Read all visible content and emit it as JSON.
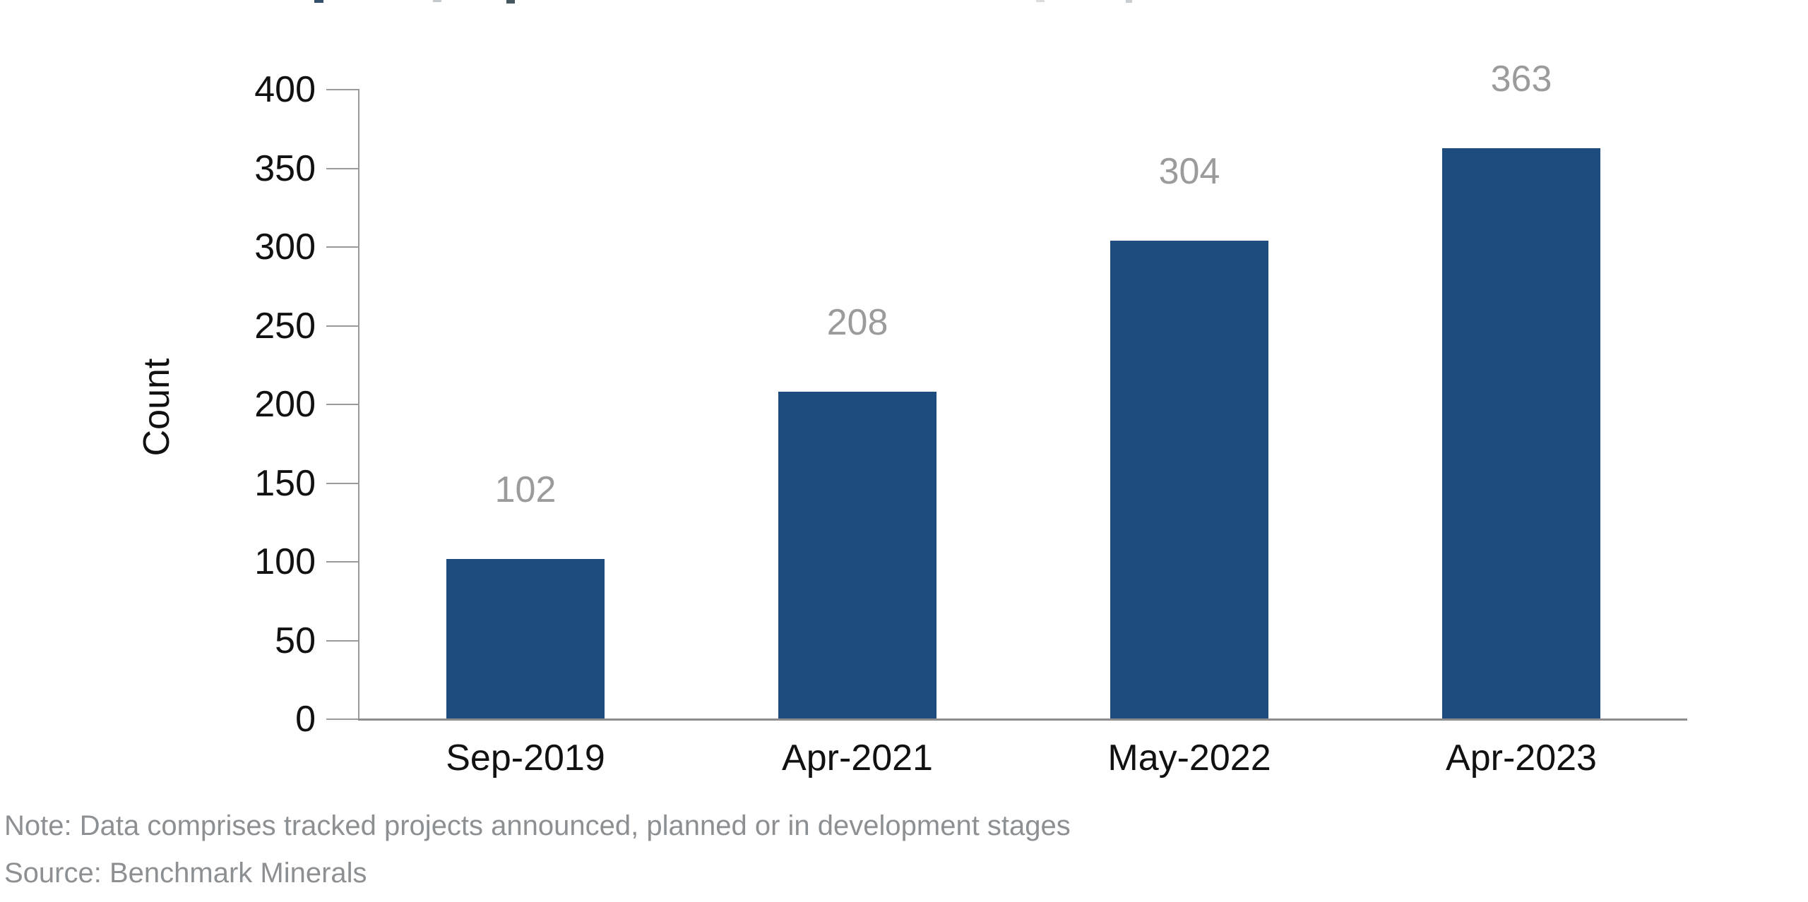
{
  "chart_data": {
    "type": "bar",
    "categories": [
      "Sep-2019",
      "Apr-2021",
      "May-2022",
      "Apr-2023"
    ],
    "values": [
      102,
      208,
      304,
      363
    ],
    "title": "",
    "xlabel": "",
    "ylabel": "Count",
    "ylim": [
      0,
      400
    ],
    "yticks": [
      0,
      50,
      100,
      150,
      200,
      250,
      300,
      350,
      400
    ],
    "grid": false,
    "legend": false,
    "bar_color": "#1f4c7e",
    "value_label_color": "#9b9b9b",
    "axis_line_color": "#9a9a9a",
    "tick_label_color": "#111111"
  },
  "footer": {
    "note": "Note: Data comprises tracked projects announced, planned or in development stages",
    "source": "Source: Benchmark Minerals",
    "text_color": "#8d9093"
  }
}
